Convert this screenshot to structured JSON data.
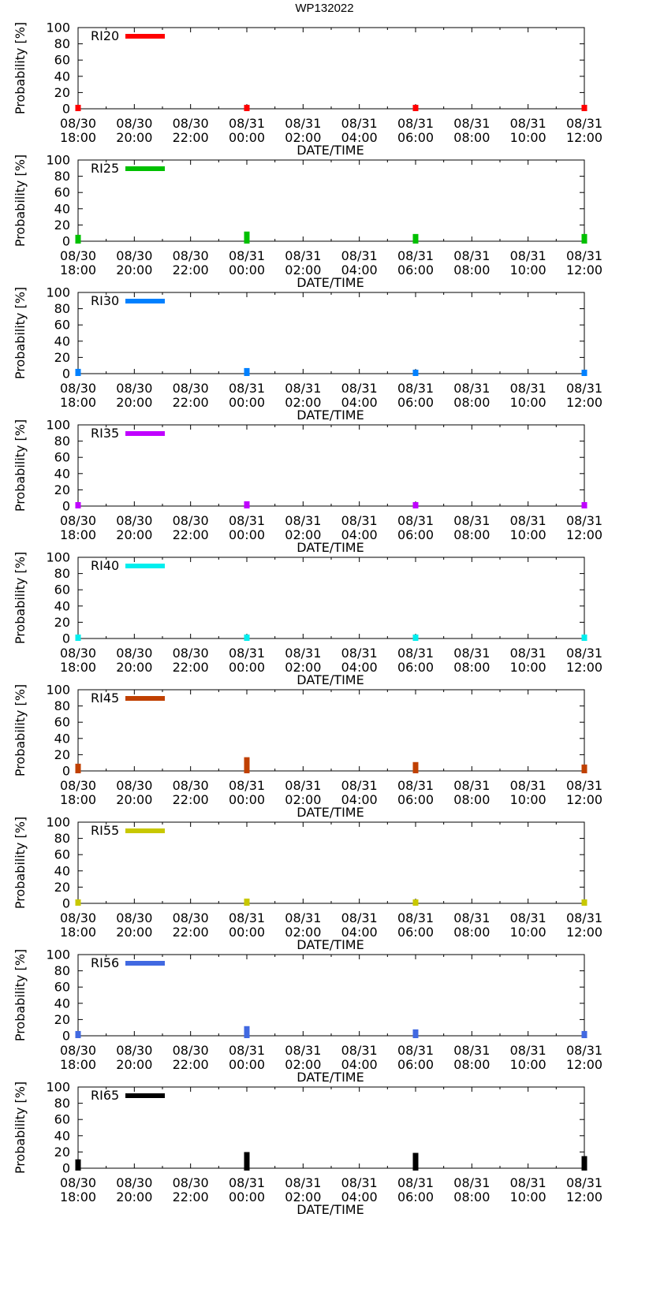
{
  "title": "WP132022",
  "chart_data": {
    "type": "bar",
    "title": "WP132022",
    "xlabel": "DATE/TIME",
    "ylabel": "Probability [%]",
    "ylim": [
      0,
      100
    ],
    "yticks": [
      "0",
      "20",
      "40",
      "60",
      "80",
      "100"
    ],
    "xticks": [
      {
        "line1": "08/30",
        "line2": "18:00"
      },
      {
        "line1": "08/30",
        "line2": "20:00"
      },
      {
        "line1": "08/30",
        "line2": "22:00"
      },
      {
        "line1": "08/31",
        "line2": "00:00"
      },
      {
        "line1": "08/31",
        "line2": "02:00"
      },
      {
        "line1": "08/31",
        "line2": "04:00"
      },
      {
        "line1": "08/31",
        "line2": "06:00"
      },
      {
        "line1": "08/31",
        "line2": "08:00"
      },
      {
        "line1": "08/31",
        "line2": "10:00"
      },
      {
        "line1": "08/31",
        "line2": "12:00"
      }
    ],
    "x_hours": [
      0,
      6,
      12,
      18
    ],
    "xlim_hours": [
      0,
      18
    ],
    "series": [
      {
        "name": "RI20",
        "color": "#ff0000",
        "values": [
          1,
          1,
          1,
          1
        ]
      },
      {
        "name": "RI25",
        "color": "#00c000",
        "values": [
          4,
          8,
          5,
          5
        ]
      },
      {
        "name": "RI30",
        "color": "#0080ff",
        "values": [
          2,
          3,
          1,
          1
        ]
      },
      {
        "name": "RI35",
        "color": "#c000ff",
        "values": [
          1,
          2,
          1,
          1
        ]
      },
      {
        "name": "RI40",
        "color": "#00eeee",
        "values": [
          1,
          1,
          1,
          1
        ]
      },
      {
        "name": "RI45",
        "color": "#c04000",
        "values": [
          5,
          13,
          7,
          4
        ]
      },
      {
        "name": "RI55",
        "color": "#c8c800",
        "values": [
          1,
          2,
          1,
          1
        ]
      },
      {
        "name": "RI56",
        "color": "#4169e1",
        "values": [
          2,
          8,
          4,
          2
        ]
      },
      {
        "name": "RI65",
        "color": "#000000",
        "values": [
          7,
          16,
          15,
          11
        ]
      }
    ]
  }
}
